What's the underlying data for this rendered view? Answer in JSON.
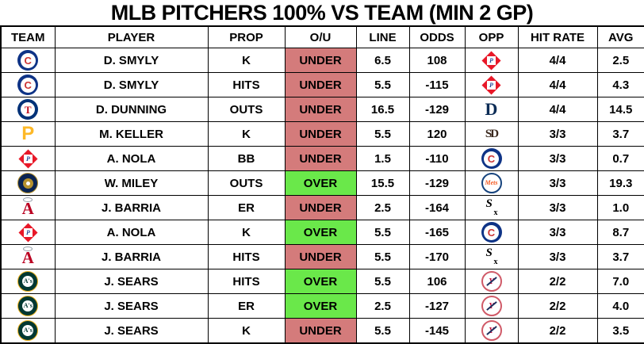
{
  "title": "MLB PITCHERS 100% VS TEAM (MIN 2 GP)",
  "colors": {
    "over_bg": "#6ae84a",
    "under_bg": "#d47b7b",
    "border": "#000000",
    "background": "#ffffff",
    "text": "#000000"
  },
  "chart_data": {
    "type": "table",
    "title": "MLB PITCHERS 100% VS TEAM (MIN 2 GP)",
    "columns": [
      "TEAM",
      "PLAYER",
      "PROP",
      "O/U",
      "LINE",
      "ODDS",
      "OPP",
      "HIT RATE",
      "AVG"
    ],
    "rows": [
      {
        "team": "Cubs",
        "team_icon": "cubs-logo-icon",
        "player": "D. SMYLY",
        "prop": "K",
        "ou": "UNDER",
        "line": "6.5",
        "odds": "108",
        "opp": "Phillies",
        "opp_icon": "phillies-logo-icon",
        "hit_rate": "4/4",
        "avg": "2.5"
      },
      {
        "team": "Cubs",
        "team_icon": "cubs-logo-icon",
        "player": "D. SMYLY",
        "prop": "HITS",
        "ou": "UNDER",
        "line": "5.5",
        "odds": "-115",
        "opp": "Phillies",
        "opp_icon": "phillies-logo-icon",
        "hit_rate": "4/4",
        "avg": "4.3"
      },
      {
        "team": "Rangers",
        "team_icon": "rangers-logo-icon",
        "player": "D. DUNNING",
        "prop": "OUTS",
        "ou": "UNDER",
        "line": "16.5",
        "odds": "-129",
        "opp": "Tigers",
        "opp_icon": "tigers-logo-icon",
        "hit_rate": "4/4",
        "avg": "14.5"
      },
      {
        "team": "Pirates",
        "team_icon": "pirates-logo-icon",
        "player": "M. KELLER",
        "prop": "K",
        "ou": "UNDER",
        "line": "5.5",
        "odds": "120",
        "opp": "Padres",
        "opp_icon": "padres-logo-icon",
        "hit_rate": "3/3",
        "avg": "3.7"
      },
      {
        "team": "Phillies",
        "team_icon": "phillies-logo-icon",
        "player": "A. NOLA",
        "prop": "BB",
        "ou": "UNDER",
        "line": "1.5",
        "odds": "-110",
        "opp": "Cubs",
        "opp_icon": "cubs-logo-icon",
        "hit_rate": "3/3",
        "avg": "0.7"
      },
      {
        "team": "Brewers",
        "team_icon": "brewers-logo-icon",
        "player": "W. MILEY",
        "prop": "OUTS",
        "ou": "OVER",
        "line": "15.5",
        "odds": "-129",
        "opp": "Mets",
        "opp_icon": "mets-logo-icon",
        "hit_rate": "3/3",
        "avg": "19.3"
      },
      {
        "team": "Angels",
        "team_icon": "angels-logo-icon",
        "player": "J. BARRIA",
        "prop": "ER",
        "ou": "UNDER",
        "line": "2.5",
        "odds": "-164",
        "opp": "White Sox",
        "opp_icon": "whitesox-logo-icon",
        "hit_rate": "3/3",
        "avg": "1.0"
      },
      {
        "team": "Phillies",
        "team_icon": "phillies-logo-icon",
        "player": "A. NOLA",
        "prop": "K",
        "ou": "OVER",
        "line": "5.5",
        "odds": "-165",
        "opp": "Cubs",
        "opp_icon": "cubs-logo-icon",
        "hit_rate": "3/3",
        "avg": "8.7"
      },
      {
        "team": "Angels",
        "team_icon": "angels-logo-icon",
        "player": "J. BARRIA",
        "prop": "HITS",
        "ou": "UNDER",
        "line": "5.5",
        "odds": "-170",
        "opp": "White Sox",
        "opp_icon": "whitesox-logo-icon",
        "hit_rate": "3/3",
        "avg": "3.7"
      },
      {
        "team": "Athletics",
        "team_icon": "athletics-logo-icon",
        "player": "J. SEARS",
        "prop": "HITS",
        "ou": "OVER",
        "line": "5.5",
        "odds": "106",
        "opp": "Yankees",
        "opp_icon": "yankees-logo-icon",
        "hit_rate": "2/2",
        "avg": "7.0"
      },
      {
        "team": "Athletics",
        "team_icon": "athletics-logo-icon",
        "player": "J. SEARS",
        "prop": "ER",
        "ou": "OVER",
        "line": "2.5",
        "odds": "-127",
        "opp": "Yankees",
        "opp_icon": "yankees-logo-icon",
        "hit_rate": "2/2",
        "avg": "4.0"
      },
      {
        "team": "Athletics",
        "team_icon": "athletics-logo-icon",
        "player": "J. SEARS",
        "prop": "K",
        "ou": "UNDER",
        "line": "5.5",
        "odds": "-145",
        "opp": "Yankees",
        "opp_icon": "yankees-logo-icon",
        "hit_rate": "2/2",
        "avg": "3.5"
      }
    ]
  }
}
